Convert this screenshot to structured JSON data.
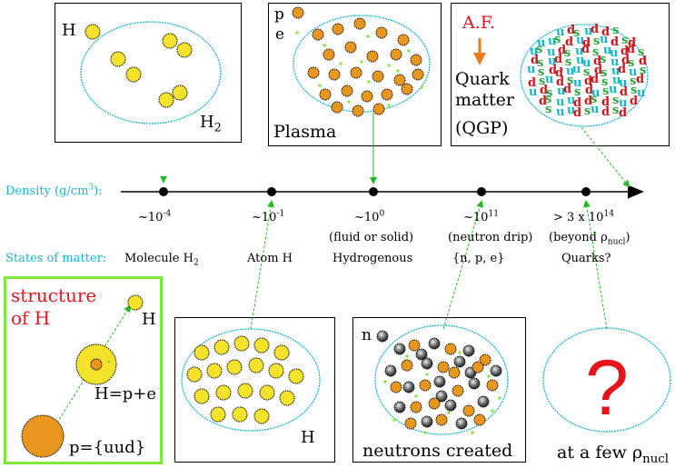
{
  "axis": {
    "density_label": "Density (g/cm",
    "density_unit_exp": "3",
    "density_label_end": "):",
    "states_label": "States of matter:",
    "ticks": [
      {
        "value": "~10",
        "exp": "-4",
        "state": "Molecule H",
        "state_sub": "2",
        "note": ""
      },
      {
        "value": "~10",
        "exp": "-1",
        "state": "Atom H",
        "state_sub": "",
        "note": ""
      },
      {
        "value": "~10",
        "exp": "0",
        "state": "Hydrogenous",
        "state_sub": "",
        "note": "(fluid or solid)"
      },
      {
        "value": "~10",
        "exp": "11",
        "state": "{n, p, e}",
        "state_sub": "",
        "note": "(neutron drip)"
      },
      {
        "value": "> 3 x 10",
        "exp": "14",
        "state": "Quarks?",
        "state_sub": "",
        "note": "(beyond ρ",
        "note_sub": "nucl",
        "note_end": ")"
      }
    ]
  },
  "panels": {
    "molecule": {
      "atom_label": "H",
      "molecule_label": "H",
      "molecule_sub": "2"
    },
    "plasma": {
      "label_p": "p",
      "label_e": "e",
      "title": "Plasma"
    },
    "quark": {
      "af_label": "A.F.",
      "line1": "Quark",
      "line2": "matter",
      "line3": "(QGP)"
    },
    "structure": {
      "title_line1": "structure",
      "title_line2": "of H",
      "h_label": "H",
      "h_eq": "H=p+e",
      "p_eq": "p={uud}"
    },
    "atom": {
      "label": "H"
    },
    "neutron": {
      "label_n": "n",
      "caption": "neutrons created"
    },
    "unknown": {
      "mark": "?",
      "caption": "at a few ρ",
      "caption_sub": "nucl"
    }
  },
  "colors": {
    "cyan": "#19b4cc",
    "green": "#22bb22",
    "red": "#e5141b",
    "orange": "#f07a1a",
    "atom_yellow": "#f5e22a",
    "nucleon_orange": "#e8961e",
    "frame_green": "#7ee83a"
  }
}
